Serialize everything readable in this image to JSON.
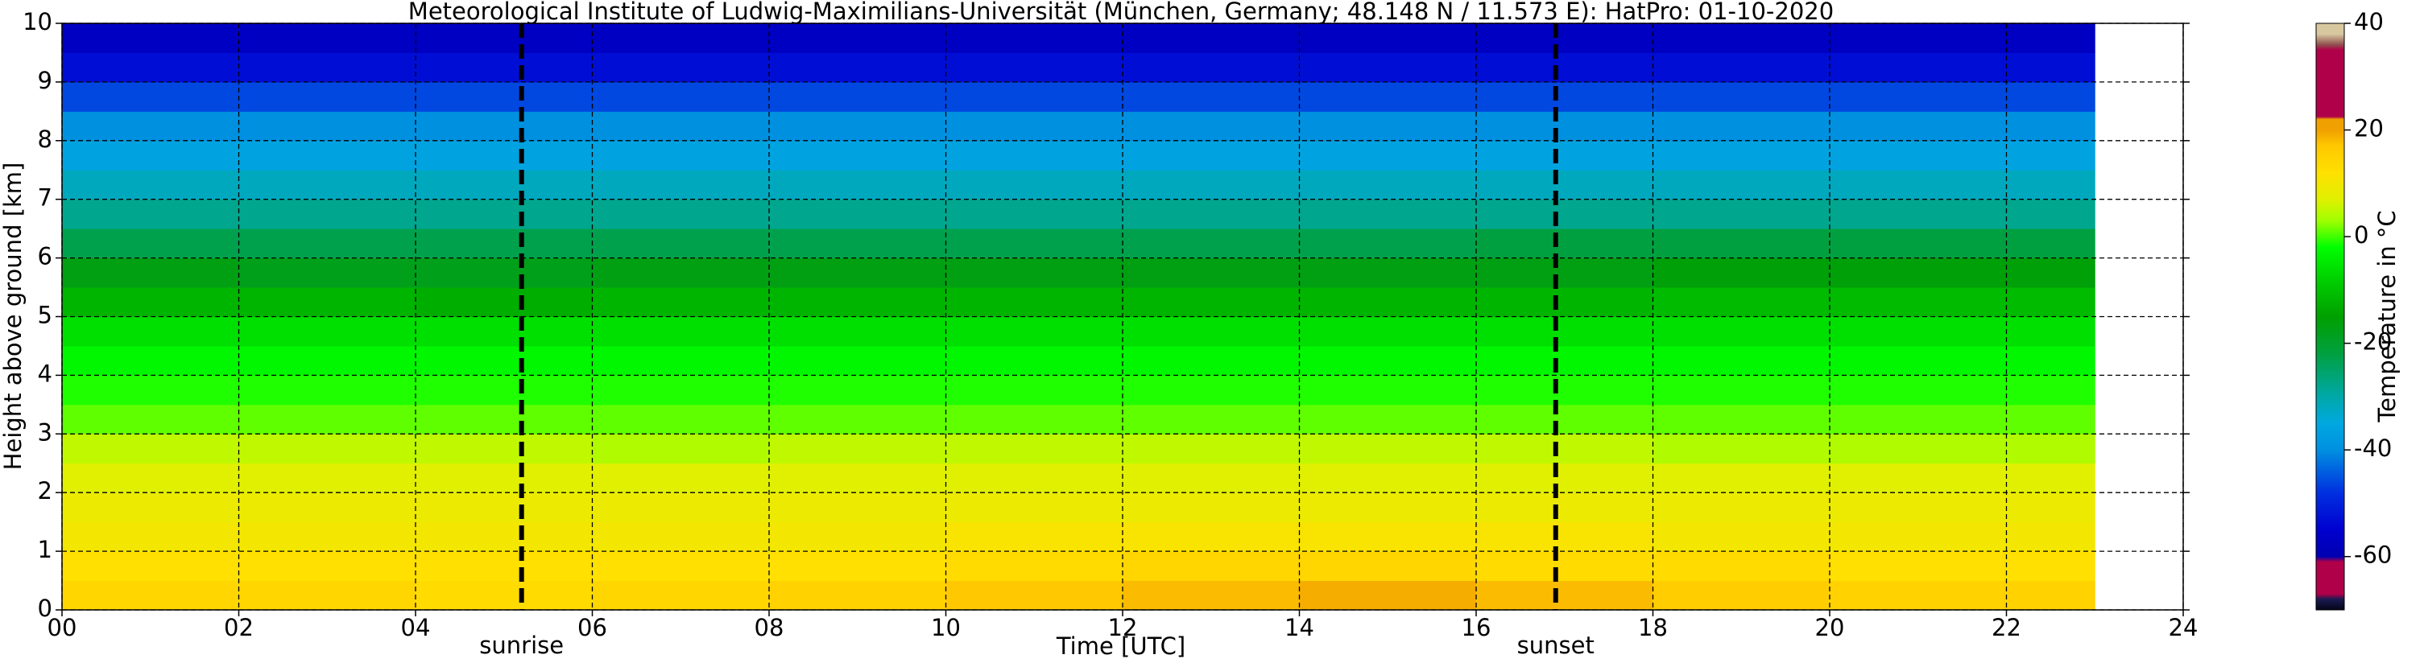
{
  "chart_data": {
    "type": "heatmap",
    "title": "Meteorological Institute of Ludwig-Maximilians-Universität (München, Germany; 48.148 N / 11.573 E):    HatPro: 01-10-2020",
    "xlabel": "Time [UTC]",
    "ylabel": "Height above ground [km]",
    "xlim": [
      0,
      24
    ],
    "ylim": [
      0,
      10
    ],
    "xticks": [
      {
        "value": 0,
        "label": "00"
      },
      {
        "value": 2,
        "label": "02"
      },
      {
        "value": 4,
        "label": "04"
      },
      {
        "value": 6,
        "label": "06"
      },
      {
        "value": 8,
        "label": "08"
      },
      10,
      12,
      14,
      16,
      18,
      20,
      22,
      24
    ],
    "yticks": [
      0,
      1,
      2,
      3,
      4,
      5,
      6,
      7,
      8,
      9,
      10
    ],
    "grid": true,
    "x_edges": [
      0,
      2,
      4,
      6,
      8,
      10,
      12,
      14,
      16,
      18,
      20,
      22,
      23
    ],
    "y_edges": [
      0,
      0.5,
      1,
      1.5,
      2,
      2.5,
      3,
      3.5,
      4,
      4.5,
      5,
      5.5,
      6,
      6.5,
      7,
      7.5,
      8,
      8.5,
      9,
      9.5,
      10
    ],
    "values": [
      [
        14,
        14,
        13,
        14,
        15,
        17,
        18,
        19,
        18,
        16,
        15,
        15
      ],
      [
        12,
        12,
        12,
        12,
        12,
        13,
        14,
        14,
        13,
        13,
        12,
        12
      ],
      [
        10,
        10,
        10,
        10,
        10,
        11,
        11,
        11,
        11,
        10,
        10,
        10
      ],
      [
        9,
        9,
        9,
        9,
        9,
        9,
        9,
        9,
        9,
        9,
        9,
        9
      ],
      [
        7,
        7,
        7,
        7,
        7,
        7,
        7,
        7,
        7,
        7,
        7,
        7
      ],
      [
        5,
        5,
        5,
        4,
        5,
        5,
        5,
        5,
        5,
        4,
        4,
        4
      ],
      [
        1,
        1,
        1,
        1,
        1,
        1,
        1,
        1,
        1,
        1,
        1,
        1
      ],
      [
        -1,
        -1,
        -1,
        -1,
        -1,
        -1,
        -1,
        -1,
        -1,
        -1,
        -1,
        -1
      ],
      [
        -3,
        -3,
        -3,
        -3,
        -3,
        -3,
        -3,
        -3,
        -3,
        -3,
        -3,
        -3
      ],
      [
        -6,
        -6,
        -6,
        -6,
        -6,
        -6,
        -6,
        -6,
        -6,
        -6,
        -6,
        -6
      ],
      [
        -12,
        -12,
        -13,
        -12,
        -12,
        -12,
        -12,
        -12,
        -12,
        -11,
        -11,
        -11
      ],
      [
        -17,
        -18,
        -18,
        -17,
        -17,
        -17,
        -17,
        -17,
        -17,
        -16,
        -16,
        -16
      ],
      [
        -23,
        -23,
        -23,
        -23,
        -23,
        -23,
        -23,
        -23,
        -22,
        -22,
        -22,
        -22
      ],
      [
        -28,
        -28,
        -28,
        -28,
        -28,
        -28,
        -28,
        -28,
        -28,
        -28,
        -28,
        -28
      ],
      [
        -32,
        -32,
        -32,
        -32,
        -32,
        -32,
        -32,
        -32,
        -32,
        -32,
        -32,
        -32
      ],
      [
        -36,
        -36,
        -36,
        -36,
        -36,
        -36,
        -36,
        -36,
        -36,
        -36,
        -36,
        -36
      ],
      [
        -40,
        -40,
        -40,
        -40,
        -40,
        -40,
        -40,
        -40,
        -40,
        -40,
        -40,
        -40
      ],
      [
        -46,
        -46,
        -46,
        -46,
        -46,
        -46,
        -46,
        -46,
        -46,
        -46,
        -46,
        -46
      ],
      [
        -53,
        -53,
        -53,
        -53,
        -53,
        -53,
        -53,
        -53,
        -53,
        -53,
        -53,
        -53
      ],
      [
        -57,
        -57,
        -57,
        -57,
        -57,
        -57,
        -57,
        -57,
        -57,
        -57,
        -57,
        -57
      ]
    ],
    "annotations": [
      {
        "text": "sunrise",
        "x": 5.2
      },
      {
        "text": "sunset",
        "x": 16.9
      }
    ],
    "colorbar": {
      "label": "Temperature in °C",
      "lim": [
        -70,
        40
      ],
      "ticks": [
        -60,
        -40,
        -20,
        0,
        20,
        40
      ],
      "stops": [
        {
          "value": -70,
          "color": "#05051a"
        },
        {
          "value": -68,
          "color": "#1a1a50"
        },
        {
          "value": -67,
          "color": "#b0004a"
        },
        {
          "value": -61,
          "color": "#b0004a"
        },
        {
          "value": -60,
          "color": "#0000b0"
        },
        {
          "value": -55,
          "color": "#0000d0"
        },
        {
          "value": -48,
          "color": "#0030e0"
        },
        {
          "value": -40,
          "color": "#0090e0"
        },
        {
          "value": -35,
          "color": "#00a8e0"
        },
        {
          "value": -30,
          "color": "#00a8a8"
        },
        {
          "value": -22,
          "color": "#00a040"
        },
        {
          "value": -15,
          "color": "#00a000"
        },
        {
          "value": -8,
          "color": "#00d000"
        },
        {
          "value": -2,
          "color": "#00ff00"
        },
        {
          "value": 3,
          "color": "#a0ff00"
        },
        {
          "value": 7,
          "color": "#e0f000"
        },
        {
          "value": 12,
          "color": "#ffe000"
        },
        {
          "value": 17,
          "color": "#ffc800"
        },
        {
          "value": 20,
          "color": "#f0a000"
        },
        {
          "value": 22,
          "color": "#f0a000"
        },
        {
          "value": 22.5,
          "color": "#b0004a"
        },
        {
          "value": 35,
          "color": "#b0004a"
        },
        {
          "value": 36,
          "color": "#905050"
        },
        {
          "value": 38,
          "color": "#d8c8a0"
        },
        {
          "value": 40,
          "color": "#d8c8a0"
        }
      ]
    }
  }
}
